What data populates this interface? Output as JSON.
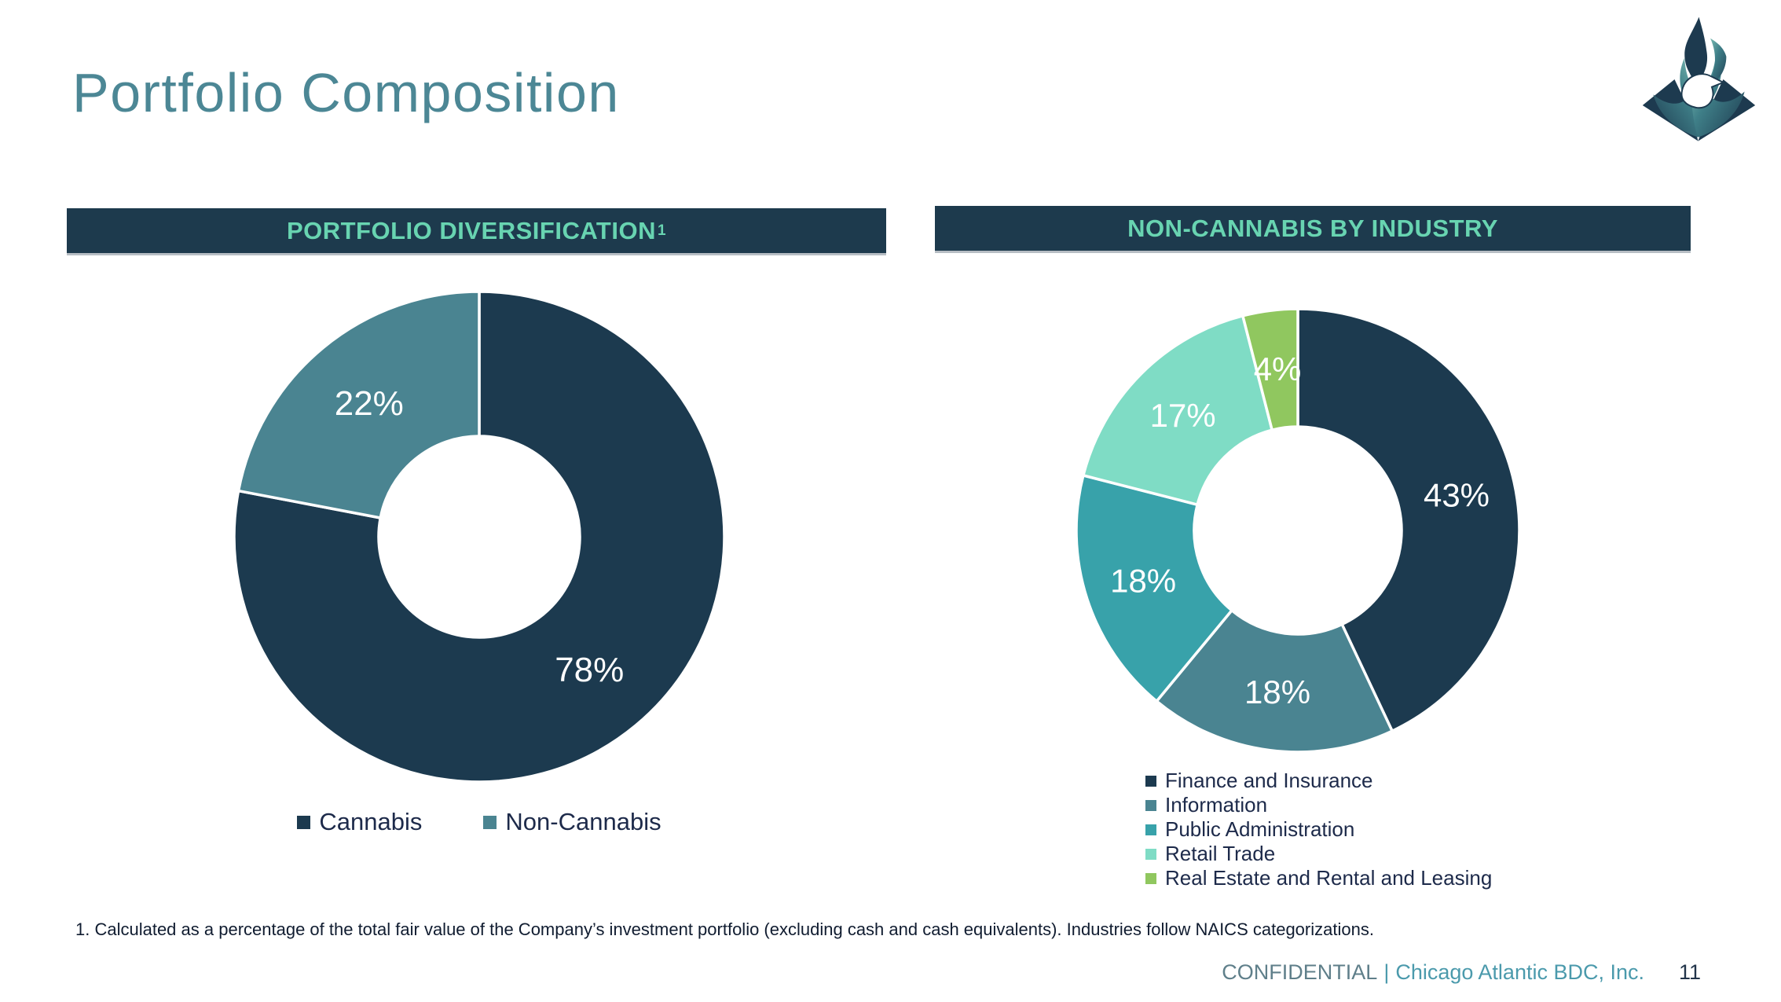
{
  "slide": {
    "title": "Portfolio Composition",
    "footnote": "1. Calculated as a percentage of the total fair value of the Company’s investment portfolio (excluding cash and cash equivalents). Industries follow NAICS categorizations.",
    "footer": {
      "confidential_label": "CONFIDENTIAL",
      "separator": "|",
      "company_name": "Chicago Atlantic BDC, Inc.",
      "page_number": "11"
    },
    "logo_icon": "phoenix-flame-logo"
  },
  "panels": [
    {
      "header": "PORTFOLIO DIVERSIFICATION",
      "header_superscript": "1"
    },
    {
      "header": "NON-CANNABIS BY INDUSTRY",
      "header_superscript": ""
    }
  ],
  "chart_data": [
    {
      "type": "pie",
      "subtype": "donut",
      "title": "PORTFOLIO DIVERSIFICATION (footnote 1)",
      "labels": [
        "Cannabis",
        "Non-Cannabis"
      ],
      "values": [
        78,
        22
      ],
      "value_labels": [
        "78%",
        "22%"
      ],
      "colors": [
        "#1C3A4F",
        "#4A8491"
      ],
      "start_angle_deg": 0,
      "direction": "clockwise",
      "legend_position": "bottom-center",
      "data_label_color": "#FFFFFF"
    },
    {
      "type": "pie",
      "subtype": "donut",
      "title": "NON-CANNABIS BY INDUSTRY",
      "labels": [
        "Finance and Insurance",
        "Information",
        "Public Administration",
        "Retail Trade",
        "Real Estate and Rental and Leasing"
      ],
      "values": [
        43,
        18,
        18,
        17,
        4
      ],
      "value_labels": [
        "43%",
        "18%",
        "18%",
        "17%",
        "4%"
      ],
      "colors": [
        "#1C3A4F",
        "#4A8491",
        "#38A2AA",
        "#7FDCC5",
        "#90C75F"
      ],
      "start_angle_deg": 0,
      "direction": "clockwise",
      "legend_position": "bottom-left",
      "data_label_color": "#FFFFFF"
    }
  ],
  "palette": {
    "title_text": "#4C8795",
    "header_bar_bg": "#1D3A4D",
    "header_bar_text": "#68D4B1",
    "header_bar_border": "#B7BEC4",
    "navy": "#1C3A4F",
    "teal": "#4A8491",
    "cyan": "#38A2AA",
    "mint": "#7FDCC5",
    "lime": "#90C75F",
    "legend_text": "#1D2A4A",
    "footnote_text": "#101C30",
    "footer_confidential": "#5F7F8A",
    "footer_company": "#4B9AAC",
    "page_number_text": "#22344A",
    "slice_label_text": "#FFFFFF"
  }
}
